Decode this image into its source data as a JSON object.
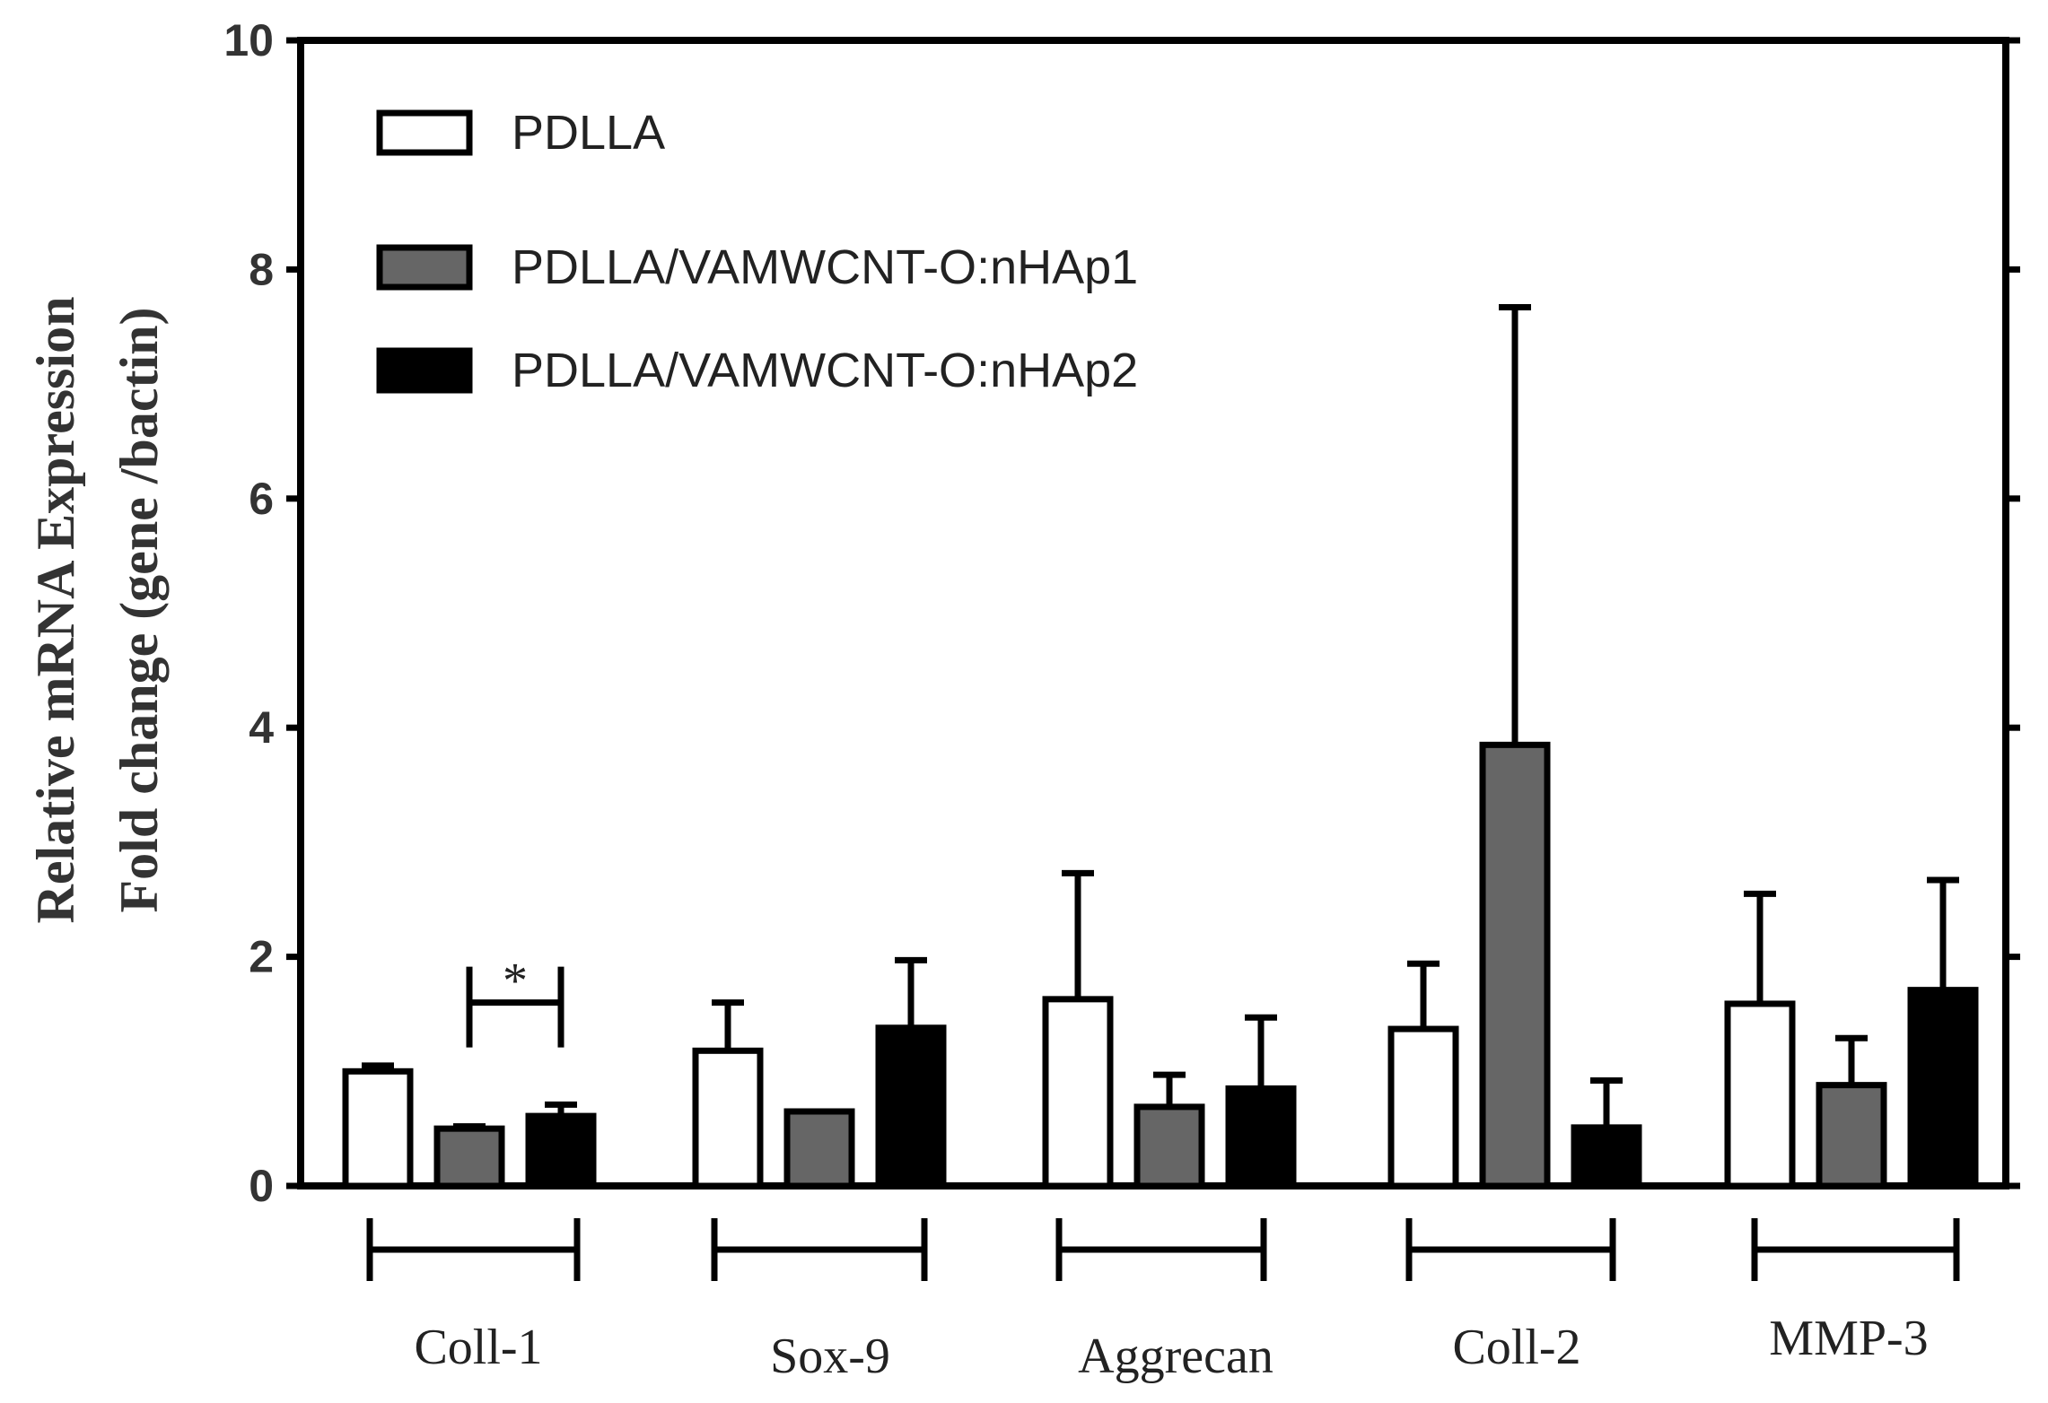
{
  "chart_data": {
    "type": "bar",
    "title": "",
    "ylabel_line1": "Relative mRNA Expression",
    "ylabel_line2": "Fold change (gene /bactin)",
    "xlabel": "",
    "ylim": [
      0,
      10
    ],
    "yticks": [
      "0",
      "2",
      "4",
      "6",
      "8",
      "10"
    ],
    "categories": [
      "Coll-1",
      "Sox-9",
      "Aggrecan",
      "Coll-2",
      "MMP-3"
    ],
    "series": [
      {
        "name": "PDLLA",
        "color": "#ffffff",
        "values": [
          1.0,
          1.18,
          1.63,
          1.37,
          1.59
        ],
        "errors": [
          0.05,
          0.42,
          1.1,
          0.57,
          0.96
        ]
      },
      {
        "name": "PDLLA/VAMWCNT-O:nHAp1",
        "color": "#666666",
        "values": [
          0.5,
          0.65,
          0.69,
          3.85,
          0.88
        ],
        "errors": [
          0.02,
          0.0,
          0.28,
          3.82,
          0.41
        ]
      },
      {
        "name": "PDLLA/VAMWCNT-O:nHAp2",
        "color": "#000000",
        "values": [
          0.61,
          1.38,
          0.85,
          0.51,
          1.71
        ],
        "errors": [
          0.1,
          0.59,
          0.62,
          0.41,
          0.96
        ]
      }
    ],
    "annotations": [
      {
        "text": "*",
        "category": "Coll-1",
        "between": [
          "PDLLA/VAMWCNT-O:nHAp1",
          "PDLLA/VAMWCNT-O:nHAp2"
        ],
        "level": 1.6
      }
    ],
    "legend": "top-left"
  }
}
